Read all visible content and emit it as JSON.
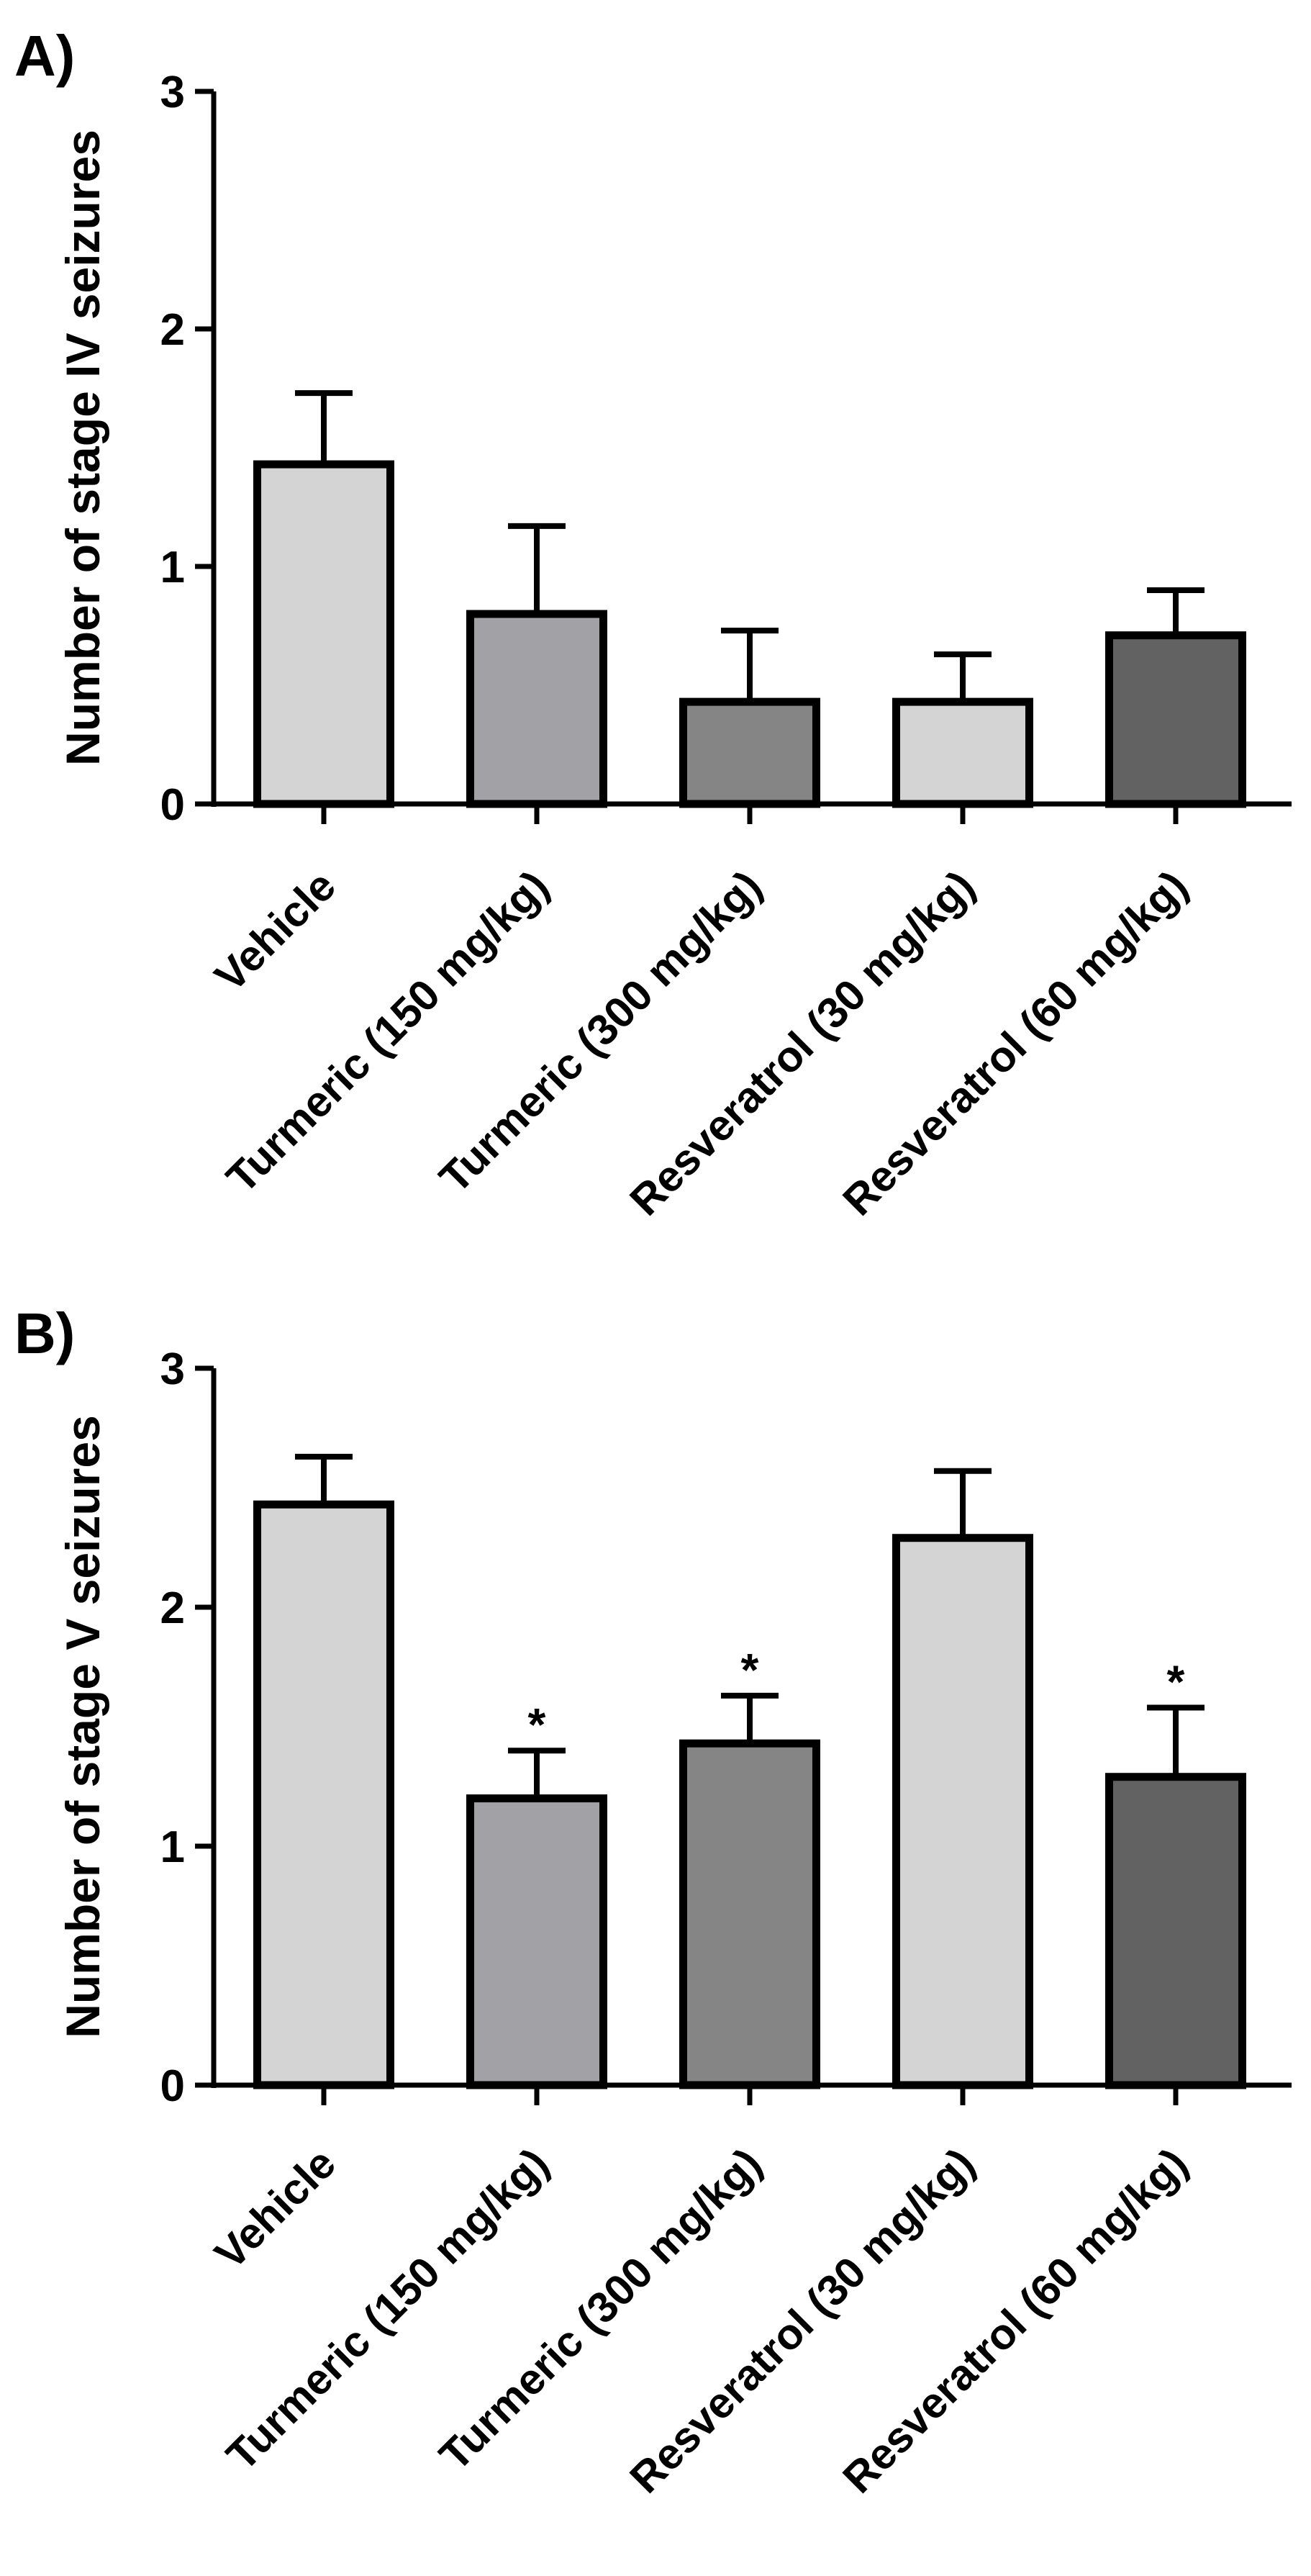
{
  "chart_data": [
    {
      "type": "bar",
      "panel_label": "A)",
      "title": "",
      "xlabel": "",
      "ylabel": "Number of stage IV seizures",
      "ylim": [
        0,
        3
      ],
      "yticks": [
        "0",
        "1",
        "2",
        "3"
      ],
      "grid": false,
      "categories": [
        "Vehicle",
        "Turmeric (150 mg/kg)",
        "Turmeric (300 mg/kg)",
        "Resveratrol (30 mg/kg)",
        "Resveratrol (60 mg/kg)"
      ],
      "values": [
        1.43,
        0.8,
        0.43,
        0.43,
        0.71
      ],
      "errors": [
        0.3,
        0.37,
        0.3,
        0.2,
        0.19
      ],
      "significance": [
        "",
        "",
        "",
        "",
        ""
      ],
      "colors": [
        "#d4d4d4",
        "#a2a2a6",
        "#858585",
        "#d4d4d4",
        "#626262"
      ]
    },
    {
      "type": "bar",
      "panel_label": "B)",
      "title": "",
      "xlabel": "",
      "ylabel": "Number of stage V seizures",
      "ylim": [
        0,
        3
      ],
      "yticks": [
        "0",
        "1",
        "2",
        "3"
      ],
      "grid": false,
      "categories": [
        "Vehicle",
        "Turmeric (150 mg/kg)",
        "Turmeric (300 mg/kg)",
        "Resveratrol (30 mg/kg)",
        "Resveratrol (60 mg/kg)"
      ],
      "values": [
        2.43,
        1.2,
        1.43,
        2.29,
        1.29
      ],
      "errors": [
        0.2,
        0.2,
        0.2,
        0.28,
        0.29
      ],
      "significance": [
        "",
        "*",
        "*",
        "",
        "*"
      ],
      "colors": [
        "#d4d4d4",
        "#a2a2a6",
        "#858585",
        "#d4d4d4",
        "#626262"
      ]
    }
  ]
}
